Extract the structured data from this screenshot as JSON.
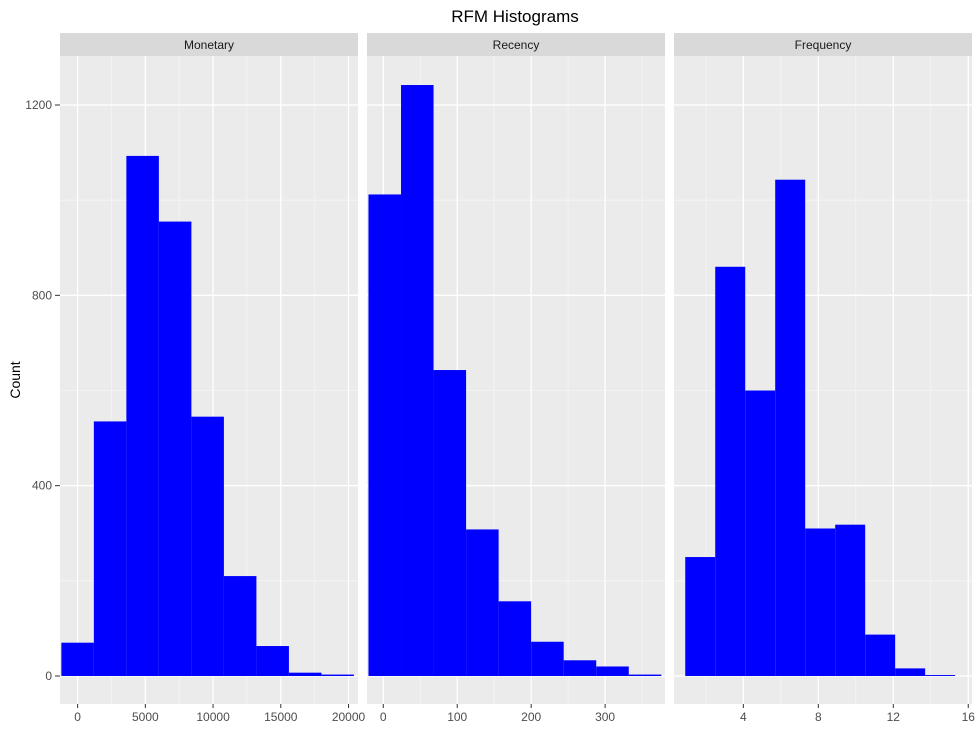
{
  "chart_data": {
    "type": "bar",
    "title": "RFM Histograms",
    "ylabel": "Count",
    "xlabel": "",
    "ylim": [
      0,
      1310
    ],
    "y_ticks": [
      0,
      400,
      800,
      1200
    ],
    "y_tick_labels": [
      "0",
      "400",
      "800",
      "1200"
    ],
    "bar_color": "#0000ff",
    "panel_bg": "#ebebeb",
    "strip_bg": "#d9d9d9",
    "grid": true,
    "panels": [
      {
        "name": "Monetary",
        "xlim": [
          -1300,
          20700
        ],
        "x_ticks": [
          0,
          5000,
          10000,
          15000,
          20000
        ],
        "x_tick_labels": [
          "0",
          "5000",
          "10000",
          "15000",
          "20000"
        ],
        "bins": [
          {
            "x0": -1200,
            "x1": 1200,
            "count": 70
          },
          {
            "x0": 1200,
            "x1": 3600,
            "count": 535
          },
          {
            "x0": 3600,
            "x1": 6000,
            "count": 1093
          },
          {
            "x0": 6000,
            "x1": 8400,
            "count": 955
          },
          {
            "x0": 8400,
            "x1": 10800,
            "count": 545
          },
          {
            "x0": 10800,
            "x1": 13200,
            "count": 210
          },
          {
            "x0": 13200,
            "x1": 15600,
            "count": 63
          },
          {
            "x0": 15600,
            "x1": 18000,
            "count": 7
          },
          {
            "x0": 18000,
            "x1": 20400,
            "count": 3
          }
        ]
      },
      {
        "name": "Recency",
        "xlim": [
          -22,
          381
        ],
        "x_ticks": [
          0,
          100,
          200,
          300
        ],
        "x_tick_labels": [
          "0",
          "100",
          "200",
          "300"
        ],
        "bins": [
          {
            "x0": -20,
            "x1": 24,
            "count": 1012
          },
          {
            "x0": 24,
            "x1": 68,
            "count": 1242
          },
          {
            "x0": 68,
            "x1": 112,
            "count": 643
          },
          {
            "x0": 112,
            "x1": 156,
            "count": 308
          },
          {
            "x0": 156,
            "x1": 200,
            "count": 157
          },
          {
            "x0": 200,
            "x1": 244,
            "count": 72
          },
          {
            "x0": 244,
            "x1": 288,
            "count": 33
          },
          {
            "x0": 288,
            "x1": 332,
            "count": 20
          },
          {
            "x0": 332,
            "x1": 376,
            "count": 3
          }
        ]
      },
      {
        "name": "Frequency",
        "xlim": [
          0.3,
          16.2
        ],
        "x_ticks": [
          4,
          8,
          12,
          16
        ],
        "x_tick_labels": [
          "4",
          "8",
          "12",
          "16"
        ],
        "bins": [
          {
            "x0": 0.9,
            "x1": 2.5,
            "count": 250
          },
          {
            "x0": 2.5,
            "x1": 4.1,
            "count": 860
          },
          {
            "x0": 4.1,
            "x1": 5.7,
            "count": 600
          },
          {
            "x0": 5.7,
            "x1": 7.3,
            "count": 1043
          },
          {
            "x0": 7.3,
            "x1": 8.9,
            "count": 310
          },
          {
            "x0": 8.9,
            "x1": 10.5,
            "count": 318
          },
          {
            "x0": 10.5,
            "x1": 12.1,
            "count": 87
          },
          {
            "x0": 12.1,
            "x1": 13.7,
            "count": 16
          },
          {
            "x0": 13.7,
            "x1": 15.3,
            "count": 2
          }
        ]
      }
    ]
  }
}
